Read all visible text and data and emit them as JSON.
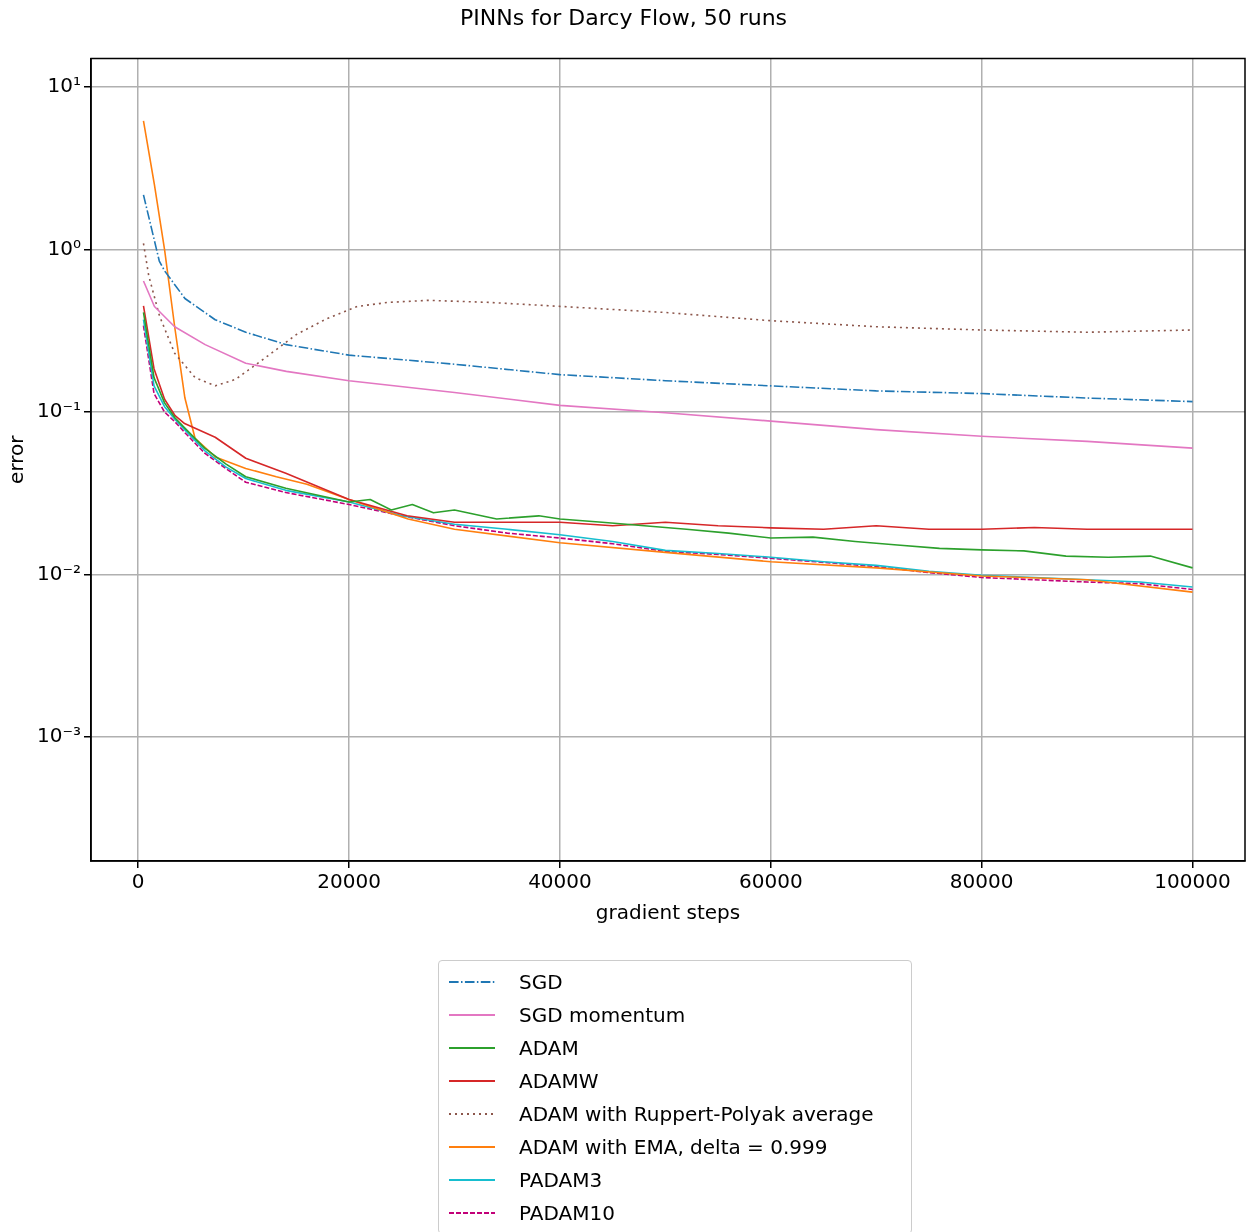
{
  "chart_data": {
    "type": "line",
    "title": "PINNs for Darcy Flow, 50 runs",
    "xlabel": "gradient steps",
    "ylabel": "error",
    "log": "y",
    "grid": true,
    "legend": "bottom",
    "marker": "none",
    "xlim": [
      -4475,
      104975
    ],
    "xticks": [
      0,
      20000,
      40000,
      60000,
      80000,
      100000
    ],
    "ylim": [
      0.000173,
      15
    ],
    "yticks": [
      {
        "value": 0.001,
        "label": "10⁻³"
      },
      {
        "value": 0.01,
        "label": "10⁻²"
      },
      {
        "value": 0.1,
        "label": "10⁻¹"
      },
      {
        "value": 1,
        "label": "10⁰"
      },
      {
        "value": 10,
        "label": "10¹"
      }
    ],
    "series": [
      {
        "name": "SGD",
        "color": "#1f77b4",
        "line_style": "dashdot",
        "x": [
          500,
          2000,
          2500,
          4430,
          7300,
          10200,
          14050,
          20000,
          30000,
          40000,
          50000,
          60000,
          70000,
          80000,
          90000,
          100000
        ],
        "values": [
          2.17,
          0.85,
          0.74,
          0.5,
          0.37,
          0.31,
          0.26,
          0.224,
          0.197,
          0.17,
          0.156,
          0.145,
          0.135,
          0.13,
          0.122,
          0.116
        ]
      },
      {
        "name": "SGD momentum",
        "color": "#e377c2",
        "line_style": "solid",
        "x": [
          500,
          1540,
          3460,
          6350,
          10200,
          14050,
          20000,
          30000,
          40000,
          50000,
          60000,
          70000,
          80000,
          90000,
          100000
        ],
        "values": [
          0.64,
          0.446,
          0.335,
          0.26,
          0.2,
          0.178,
          0.156,
          0.132,
          0.11,
          0.099,
          0.088,
          0.078,
          0.071,
          0.066,
          0.06
        ]
      },
      {
        "name": "ADAM",
        "color": "#2ca02c",
        "line_style": "solid",
        "x": [
          500,
          1500,
          2500,
          3500,
          4400,
          6300,
          8300,
          10200,
          14000,
          20000,
          22000,
          24000,
          26000,
          28000,
          30000,
          34000,
          38000,
          40000,
          44000,
          48000,
          52000,
          56000,
          60000,
          64000,
          68000,
          72000,
          76000,
          80000,
          84000,
          88000,
          92000,
          96000,
          100000
        ],
        "values": [
          0.41,
          0.163,
          0.114,
          0.092,
          0.08,
          0.06,
          0.048,
          0.04,
          0.034,
          0.028,
          0.029,
          0.025,
          0.027,
          0.024,
          0.025,
          0.022,
          0.023,
          0.022,
          0.021,
          0.02,
          0.019,
          0.018,
          0.0168,
          0.017,
          0.016,
          0.0152,
          0.0145,
          0.0142,
          0.014,
          0.013,
          0.0128,
          0.013,
          0.011
        ]
      },
      {
        "name": "ADAMW",
        "color": "#d62728",
        "line_style": "solid",
        "x": [
          500,
          1500,
          2500,
          3500,
          4400,
          7300,
          10200,
          14000,
          20000,
          25500,
          30000,
          34000,
          40000,
          45000,
          50000,
          55000,
          60000,
          65000,
          70000,
          75000,
          80000,
          85000,
          90000,
          95000,
          100000
        ],
        "values": [
          0.45,
          0.185,
          0.12,
          0.095,
          0.085,
          0.07,
          0.052,
          0.042,
          0.029,
          0.023,
          0.021,
          0.021,
          0.021,
          0.02,
          0.021,
          0.02,
          0.0194,
          0.019,
          0.02,
          0.019,
          0.019,
          0.0195,
          0.019,
          0.019,
          0.019
        ]
      },
      {
        "name": "ADAM with Ruppert-Polyak average",
        "color": "#8c564b",
        "line_style": "dotted",
        "x": [
          500,
          1000,
          2020,
          3460,
          5390,
          7310,
          9240,
          12100,
          15000,
          17900,
          20800,
          23700,
          27500,
          33300,
          40000,
          50000,
          60000,
          70000,
          80000,
          90000,
          100000
        ],
        "values": [
          1.09,
          0.69,
          0.39,
          0.23,
          0.163,
          0.145,
          0.159,
          0.217,
          0.3,
          0.376,
          0.447,
          0.473,
          0.487,
          0.473,
          0.447,
          0.41,
          0.365,
          0.335,
          0.32,
          0.31,
          0.32
        ]
      },
      {
        "name": "ADAM with EMA, delta = 0.999",
        "color": "#ff7f0e",
        "line_style": "solid",
        "x": [
          500,
          1540,
          2500,
          3460,
          4430,
          5390,
          7310,
          10200,
          13100,
          16000,
          20000,
          25600,
          30000,
          40000,
          50000,
          60000,
          70000,
          80000,
          90000,
          100000
        ],
        "values": [
          6.2,
          2.5,
          1.0,
          0.335,
          0.122,
          0.069,
          0.053,
          0.045,
          0.04,
          0.036,
          0.029,
          0.022,
          0.019,
          0.0157,
          0.0137,
          0.012,
          0.011,
          0.0098,
          0.0093,
          0.0078
        ]
      },
      {
        "name": "PADAM3",
        "color": "#17becf",
        "line_style": "solid",
        "x": [
          500,
          1500,
          2500,
          3500,
          4400,
          6300,
          8300,
          10200,
          14000,
          20000,
          25000,
          30000,
          35000,
          40000,
          45000,
          50000,
          55000,
          60000,
          65000,
          70000,
          75000,
          80000,
          85000,
          90000,
          95000,
          100000
        ],
        "values": [
          0.37,
          0.145,
          0.108,
          0.09,
          0.078,
          0.058,
          0.046,
          0.039,
          0.033,
          0.028,
          0.023,
          0.0204,
          0.019,
          0.0176,
          0.016,
          0.0141,
          0.0135,
          0.0128,
          0.012,
          0.0114,
          0.0105,
          0.0099,
          0.0096,
          0.0093,
          0.009,
          0.0084
        ]
      },
      {
        "name": "PADAM10",
        "color": "#c20078",
        "line_style": "dashed",
        "x": [
          500,
          1500,
          2500,
          3500,
          4400,
          6300,
          8300,
          10200,
          14000,
          20000,
          25000,
          30000,
          35000,
          40000,
          45000,
          50000,
          55000,
          60000,
          65000,
          70000,
          75000,
          80000,
          85000,
          90000,
          95000,
          100000
        ],
        "values": [
          0.34,
          0.13,
          0.1,
          0.087,
          0.075,
          0.056,
          0.045,
          0.037,
          0.032,
          0.027,
          0.023,
          0.02,
          0.018,
          0.0168,
          0.0155,
          0.0139,
          0.0133,
          0.0126,
          0.0119,
          0.0112,
          0.0103,
          0.0096,
          0.0093,
          0.009,
          0.0088,
          0.0081
        ]
      }
    ]
  }
}
